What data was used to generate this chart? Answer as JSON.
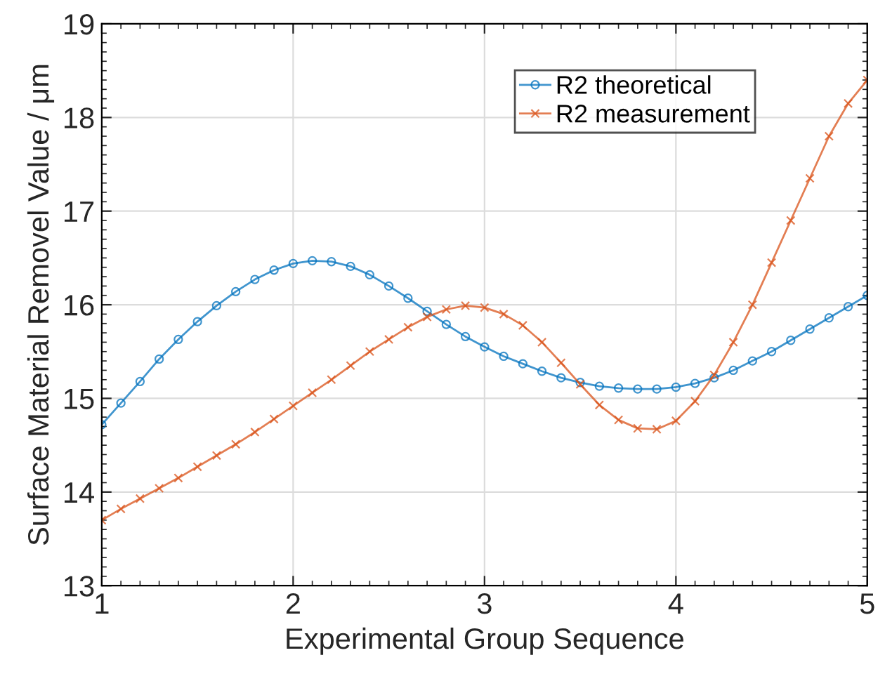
{
  "chart_data": {
    "type": "line",
    "xlabel": "Experimental Group Sequence",
    "ylabel": "Surface Material Removel Value / μm",
    "xlim": [
      1,
      5
    ],
    "xticks": [
      1,
      2,
      3,
      4,
      5
    ],
    "ylim": [
      13,
      19
    ],
    "yticks": [
      13,
      14,
      15,
      16,
      17,
      18,
      19
    ],
    "grid": true,
    "legend": "top right",
    "series": [
      {
        "name": "R2 theoretical",
        "color": "#0072bd",
        "marker": "circle",
        "x": [
          1.0,
          1.1,
          1.2,
          1.3,
          1.4,
          1.5,
          1.6,
          1.7,
          1.8,
          1.9,
          2.0,
          2.1,
          2.2,
          2.3,
          2.4,
          2.5,
          2.6,
          2.7,
          2.8,
          2.9,
          3.0,
          3.1,
          3.2,
          3.3,
          3.4,
          3.5,
          3.6,
          3.7,
          3.8,
          3.9,
          4.0,
          4.1,
          4.2,
          4.3,
          4.4,
          4.5,
          4.6,
          4.7,
          4.8,
          4.9,
          5.0
        ],
        "values": [
          14.72,
          14.95,
          15.18,
          15.42,
          15.63,
          15.82,
          15.99,
          16.14,
          16.27,
          16.37,
          16.44,
          16.47,
          16.46,
          16.41,
          16.32,
          16.2,
          16.07,
          15.93,
          15.79,
          15.66,
          15.55,
          15.45,
          15.37,
          15.29,
          15.22,
          15.17,
          15.13,
          15.11,
          15.1,
          15.1,
          15.12,
          15.16,
          15.22,
          15.3,
          15.4,
          15.5,
          15.62,
          15.74,
          15.86,
          15.98,
          16.1
        ]
      },
      {
        "name": "R2 measurement",
        "color": "#d95319",
        "marker": "cross",
        "x": [
          1.0,
          1.1,
          1.2,
          1.3,
          1.4,
          1.5,
          1.6,
          1.7,
          1.8,
          1.9,
          2.0,
          2.1,
          2.2,
          2.3,
          2.4,
          2.5,
          2.6,
          2.7,
          2.8,
          2.9,
          3.0,
          3.1,
          3.2,
          3.3,
          3.4,
          3.5,
          3.6,
          3.7,
          3.8,
          3.9,
          4.0,
          4.1,
          4.2,
          4.3,
          4.4,
          4.5,
          4.6,
          4.7,
          4.8,
          4.9,
          5.0
        ],
        "values": [
          13.7,
          13.82,
          13.93,
          14.04,
          14.15,
          14.27,
          14.39,
          14.51,
          14.64,
          14.78,
          14.92,
          15.06,
          15.2,
          15.35,
          15.5,
          15.63,
          15.76,
          15.87,
          15.95,
          15.99,
          15.97,
          15.9,
          15.78,
          15.6,
          15.38,
          15.15,
          14.93,
          14.77,
          14.68,
          14.67,
          14.76,
          14.97,
          15.25,
          15.6,
          16.0,
          16.45,
          16.9,
          17.35,
          17.8,
          18.15,
          18.4
        ]
      }
    ]
  }
}
